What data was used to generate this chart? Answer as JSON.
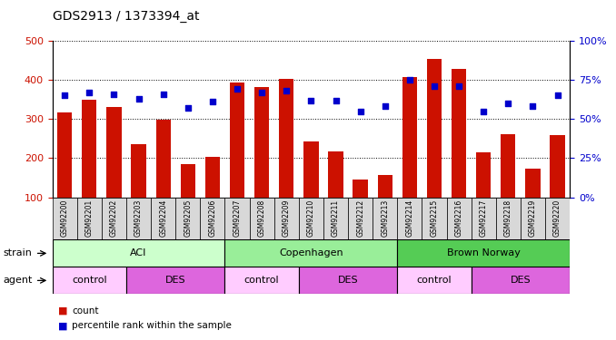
{
  "title": "GDS2913 / 1373394_at",
  "categories": [
    "GSM92200",
    "GSM92201",
    "GSM92202",
    "GSM92203",
    "GSM92204",
    "GSM92205",
    "GSM92206",
    "GSM92207",
    "GSM92208",
    "GSM92209",
    "GSM92210",
    "GSM92211",
    "GSM92212",
    "GSM92213",
    "GSM92214",
    "GSM92215",
    "GSM92216",
    "GSM92217",
    "GSM92218",
    "GSM92219",
    "GSM92220"
  ],
  "counts": [
    317,
    350,
    330,
    235,
    299,
    185,
    203,
    393,
    382,
    403,
    243,
    218,
    145,
    157,
    408,
    454,
    428,
    215,
    262,
    172,
    258
  ],
  "percentiles": [
    65,
    67,
    66,
    63,
    66,
    57,
    61,
    69,
    67,
    68,
    62,
    62,
    55,
    58,
    75,
    71,
    71,
    55,
    60,
    58,
    65
  ],
  "bar_color": "#cc1100",
  "dot_color": "#0000cc",
  "ylim_left": [
    100,
    500
  ],
  "ylim_right": [
    0,
    100
  ],
  "yticks_left": [
    100,
    200,
    300,
    400,
    500
  ],
  "yticks_right": [
    0,
    25,
    50,
    75,
    100
  ],
  "strain_groups": [
    {
      "label": "ACI",
      "start": 0,
      "end": 7,
      "color": "#ccffcc"
    },
    {
      "label": "Copenhagen",
      "start": 7,
      "end": 14,
      "color": "#99ee99"
    },
    {
      "label": "Brown Norway",
      "start": 14,
      "end": 21,
      "color": "#55cc55"
    }
  ],
  "agent_groups": [
    {
      "label": "control",
      "start": 0,
      "end": 3,
      "color": "#ffccff"
    },
    {
      "label": "DES",
      "start": 3,
      "end": 7,
      "color": "#dd66dd"
    },
    {
      "label": "control",
      "start": 7,
      "end": 10,
      "color": "#ffccff"
    },
    {
      "label": "DES",
      "start": 10,
      "end": 14,
      "color": "#dd66dd"
    },
    {
      "label": "control",
      "start": 14,
      "end": 17,
      "color": "#ffccff"
    },
    {
      "label": "DES",
      "start": 17,
      "end": 21,
      "color": "#dd66dd"
    }
  ],
  "legend_items": [
    {
      "label": "count",
      "color": "#cc1100"
    },
    {
      "label": "percentile rank within the sample",
      "color": "#0000cc"
    }
  ],
  "background_color": "#ffffff",
  "title_fontsize": 10,
  "axis_color_left": "#cc1100",
  "axis_color_right": "#0000cc"
}
